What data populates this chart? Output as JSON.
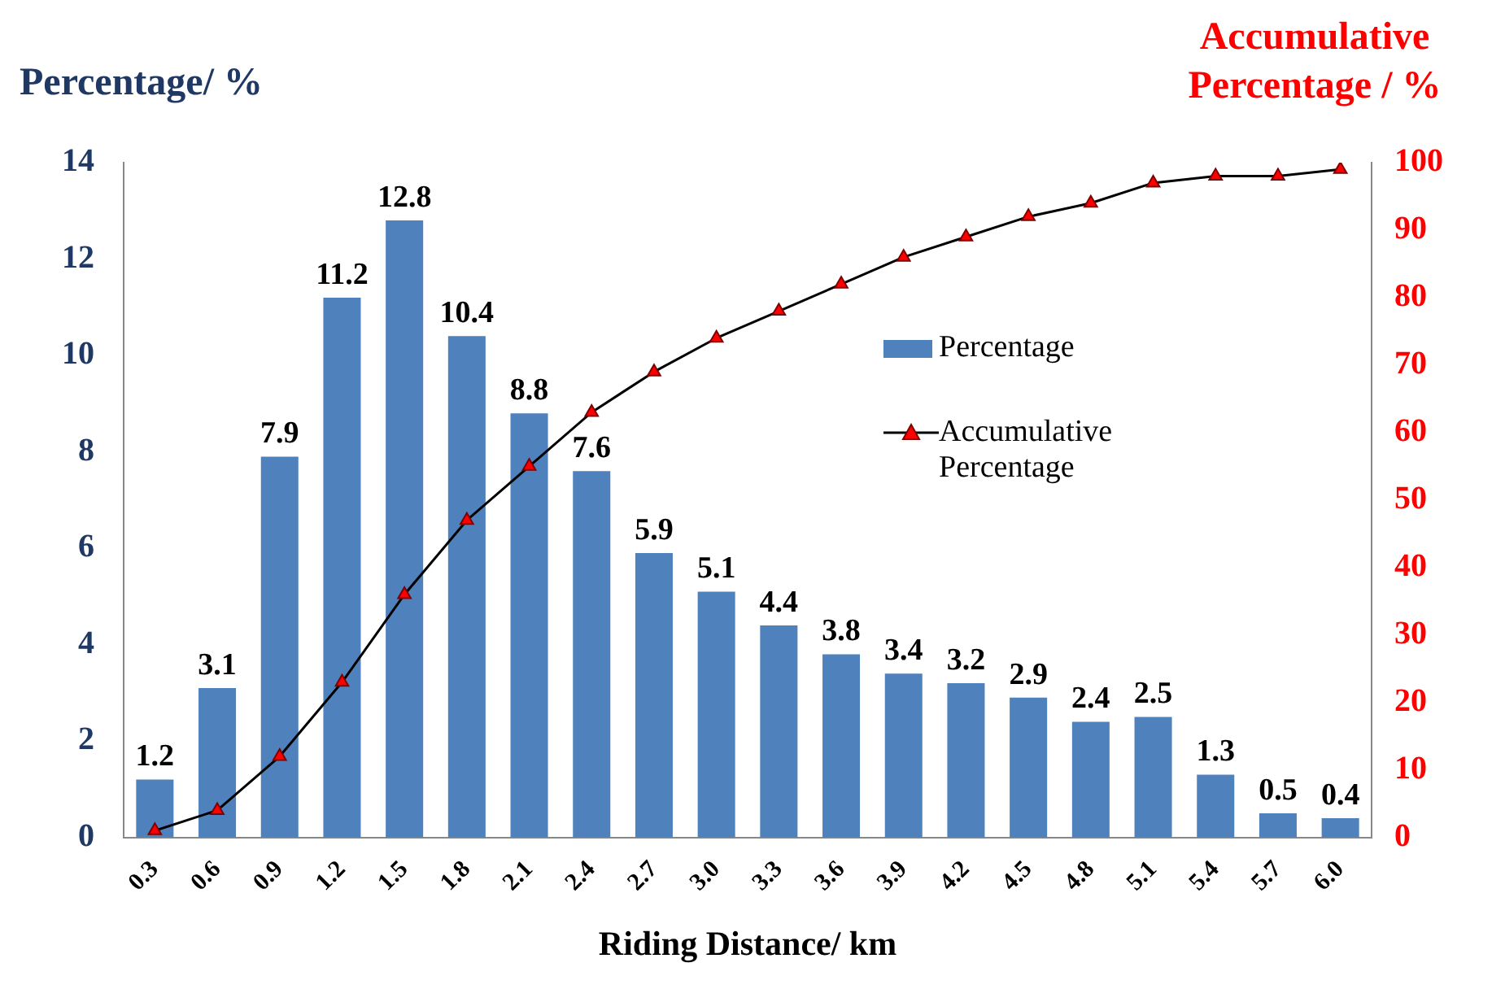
{
  "chart_data": {
    "type": "bar",
    "ylabel": "Percentage/ %",
    "y2label": "Accumulative Percentage / %",
    "xlabel": "Riding Distance/ km",
    "categories": [
      "0.3",
      "0.6",
      "0.9",
      "1.2",
      "1.5",
      "1.8",
      "2.1",
      "2.4",
      "2.7",
      "3.0",
      "3.3",
      "3.6",
      "3.9",
      "4.2",
      "4.5",
      "4.8",
      "5.1",
      "5.4",
      "5.7",
      "6.0"
    ],
    "series": [
      {
        "name": "Percentage",
        "color": "#4f81bd",
        "values": [
          1.2,
          3.1,
          7.9,
          11.2,
          12.8,
          10.4,
          8.8,
          7.6,
          5.9,
          5.1,
          4.4,
          3.8,
          3.4,
          3.2,
          2.9,
          2.4,
          2.5,
          1.3,
          0.5,
          0.4
        ],
        "value_labels": [
          "1.2",
          "3.1",
          "7.9",
          "11.2",
          "12.8",
          "10.4",
          "8.8",
          "7.6",
          "5.9",
          "5.1",
          "4.4",
          "3.8",
          "3.4",
          "3.2",
          "2.9",
          "2.4",
          "2.5",
          "1.3",
          "0.5",
          "0.4"
        ]
      },
      {
        "name": "Accumulative Percentage",
        "type": "line",
        "axis": "y2",
        "color": "#000000",
        "marker": "triangle",
        "values": [
          1,
          4,
          12,
          23,
          36,
          47,
          55,
          63,
          69,
          74,
          78,
          82,
          86,
          89,
          92,
          94,
          97,
          98,
          98,
          99
        ]
      }
    ],
    "ylim": [
      0,
      14
    ],
    "yticks": [
      0,
      2,
      4,
      6,
      8,
      10,
      12,
      14
    ],
    "y2lim": [
      0,
      100
    ],
    "y2ticks": [
      0,
      10,
      20,
      30,
      40,
      50,
      60,
      70,
      80,
      90,
      100
    ],
    "grid": false,
    "legend": "right"
  }
}
